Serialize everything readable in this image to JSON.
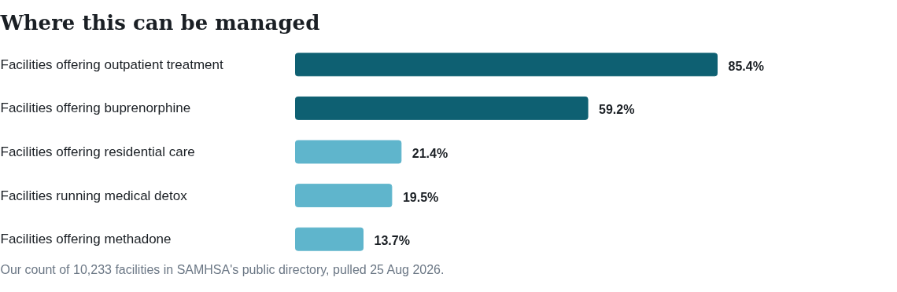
{
  "chart_data": {
    "type": "bar",
    "orientation": "horizontal",
    "title": "Where this can be managed",
    "categories": [
      "Facilities offering outpatient treatment",
      "Facilities offering buprenorphine",
      "Facilities offering residential care",
      "Facilities running medical detox",
      "Facilities offering methadone"
    ],
    "values": [
      85.4,
      59.2,
      21.4,
      19.5,
      13.7
    ],
    "colors": [
      "#0e6072",
      "#0e6072",
      "#5fb5cc",
      "#5fb5cc",
      "#5fb5cc"
    ],
    "value_labels": [
      "85.4%",
      "59.2%",
      "21.4%",
      "19.5%",
      "13.7%"
    ],
    "annotations": [
      "Our count of 10,233 facilities in SAMHSA's public directory, pulled 25 Aug 2026."
    ],
    "grid": false
  }
}
